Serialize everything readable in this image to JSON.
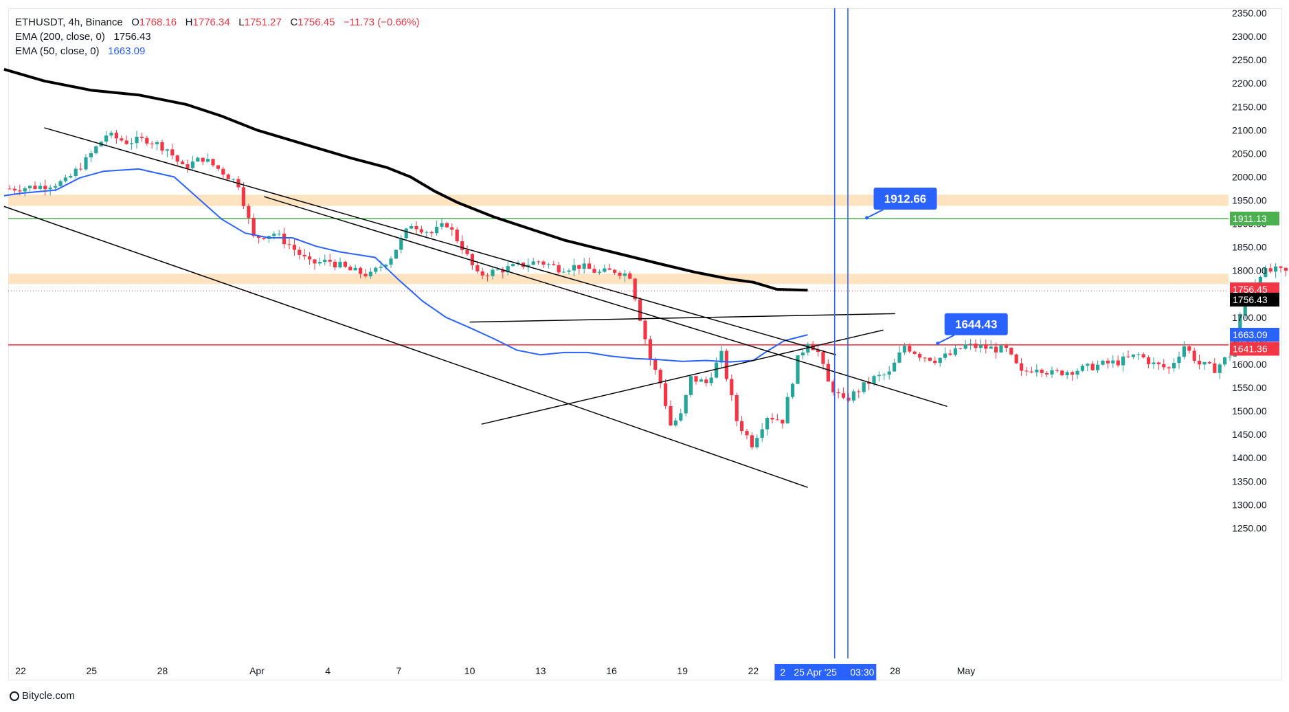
{
  "legend": {
    "symbol": "ETHUSDT, 4h, Binance",
    "o_label": "O",
    "o": "1768.16",
    "h_label": "H",
    "h": "1776.34",
    "l_label": "L",
    "l": "1751.27",
    "c_label": "C",
    "c": "1756.45",
    "change": "−11.73 (−0.66%)",
    "ema200_label": "EMA (200, close, 0)",
    "ema200_value": "1756.43",
    "ema50_label": "EMA (50, close, 0)",
    "ema50_value": "1663.09"
  },
  "footer": {
    "brand": "Bitycle.com"
  },
  "colors": {
    "up": "#26a69a",
    "down": "#f23645",
    "ema50": "#2962ff",
    "ema200": "#000000",
    "zone": "#fde3c0",
    "green_line": "#4caf50",
    "red_line": "#f23645",
    "callout": "#2962ff",
    "grid_text": "#131722"
  },
  "chart_data": {
    "type": "candlestick",
    "symbol": "ETHUSDT",
    "timeframe": "4h",
    "exchange": "Binance",
    "ylim": [
      1200,
      2360
    ],
    "y_ticks": [
      1250,
      1300,
      1350,
      1400,
      1450,
      1500,
      1550,
      1600,
      1650,
      1700,
      1750,
      1800,
      1850,
      1900,
      1950,
      2000,
      2050,
      2100,
      2150,
      2200,
      2250,
      2300,
      2350
    ],
    "x_ticks": [
      {
        "label": "22",
        "day": 22
      },
      {
        "label": "25",
        "day": 25
      },
      {
        "label": "28",
        "day": 28
      },
      {
        "label": "Apr",
        "day": 32
      },
      {
        "label": "4",
        "day": 35
      },
      {
        "label": "7",
        "day": 38
      },
      {
        "label": "10",
        "day": 41
      },
      {
        "label": "13",
        "day": 44
      },
      {
        "label": "16",
        "day": 47
      },
      {
        "label": "19",
        "day": 50
      },
      {
        "label": "22",
        "day": 53
      },
      {
        "label": "28",
        "day": 59
      },
      {
        "label": "May",
        "day": 62
      }
    ],
    "x_day_start": 21.3,
    "candle_anchors": [
      [
        0,
        1975
      ],
      [
        6,
        1980
      ],
      [
        11,
        1990
      ],
      [
        15,
        2035
      ],
      [
        19,
        2090
      ],
      [
        23,
        2075
      ],
      [
        27,
        2080
      ],
      [
        31,
        2060
      ],
      [
        34,
        2020
      ],
      [
        38,
        2040
      ],
      [
        42,
        2010
      ],
      [
        45,
        1985
      ],
      [
        48,
        1870
      ],
      [
        52,
        1880
      ],
      [
        55,
        1855
      ],
      [
        59,
        1815
      ],
      [
        63,
        1820
      ],
      [
        67,
        1800
      ],
      [
        71,
        1790
      ],
      [
        75,
        1830
      ],
      [
        79,
        1900
      ],
      [
        83,
        1880
      ],
      [
        86,
        1900
      ],
      [
        89,
        1850
      ],
      [
        92,
        1790
      ],
      [
        96,
        1800
      ],
      [
        100,
        1810
      ],
      [
        104,
        1820
      ],
      [
        108,
        1805
      ],
      [
        112,
        1810
      ],
      [
        116,
        1795
      ],
      [
        119,
        1800
      ],
      [
        122,
        1790
      ],
      [
        124,
        1700
      ],
      [
        126,
        1610
      ],
      [
        128,
        1560
      ],
      [
        130,
        1470
      ],
      [
        132,
        1490
      ],
      [
        134,
        1570
      ],
      [
        137,
        1560
      ],
      [
        140,
        1620
      ],
      [
        143,
        1480
      ],
      [
        146,
        1430
      ],
      [
        149,
        1490
      ],
      [
        152,
        1480
      ],
      [
        155,
        1610
      ],
      [
        157,
        1650
      ],
      [
        159,
        1625
      ],
      [
        161,
        1560
      ],
      [
        164,
        1520
      ],
      [
        167,
        1545
      ],
      [
        170,
        1570
      ],
      [
        173,
        1580
      ],
      [
        176,
        1640
      ],
      [
        179,
        1620
      ],
      [
        182,
        1610
      ],
      [
        185,
        1620
      ],
      [
        188,
        1640
      ],
      [
        192,
        1635
      ],
      [
        196,
        1630
      ],
      [
        199,
        1580
      ],
      [
        202,
        1595
      ],
      [
        205,
        1580
      ],
      [
        208,
        1585
      ],
      [
        211,
        1590
      ],
      [
        215,
        1600
      ],
      [
        218,
        1605
      ],
      [
        222,
        1620
      ],
      [
        225,
        1600
      ],
      [
        228,
        1590
      ],
      [
        231,
        1640
      ],
      [
        234,
        1600
      ],
      [
        237,
        1590
      ],
      [
        240,
        1620
      ],
      [
        242,
        1700
      ],
      [
        244,
        1760
      ],
      [
        246,
        1795
      ],
      [
        249,
        1800
      ],
      [
        252,
        1795
      ],
      [
        254,
        1787
      ],
      [
        256,
        1756
      ]
    ],
    "ema200_points": [
      [
        21.3,
        2230
      ],
      [
        23,
        2205
      ],
      [
        25,
        2185
      ],
      [
        27,
        2175
      ],
      [
        29,
        2155
      ],
      [
        30.5,
        2130
      ],
      [
        32,
        2100
      ],
      [
        34,
        2070
      ],
      [
        36,
        2040
      ],
      [
        37.5,
        2020
      ],
      [
        38.5,
        2000
      ],
      [
        39.5,
        1970
      ],
      [
        40.5,
        1945
      ],
      [
        42,
        1915
      ],
      [
        43.5,
        1890
      ],
      [
        45,
        1865
      ],
      [
        47,
        1840
      ],
      [
        49,
        1815
      ],
      [
        50.5,
        1797
      ],
      [
        52,
        1782
      ],
      [
        53,
        1775
      ],
      [
        54,
        1760
      ],
      [
        55.3,
        1758
      ]
    ],
    "ema50_points": [
      [
        21.3,
        1960
      ],
      [
        22,
        1965
      ],
      [
        23.5,
        1972
      ],
      [
        24.5,
        1998
      ],
      [
        25.5,
        2012
      ],
      [
        27,
        2017
      ],
      [
        28.5,
        2000
      ],
      [
        29.5,
        1955
      ],
      [
        30.5,
        1910
      ],
      [
        31.5,
        1880
      ],
      [
        32.5,
        1870
      ],
      [
        33.5,
        1870
      ],
      [
        34.5,
        1852
      ],
      [
        35.5,
        1840
      ],
      [
        37,
        1828
      ],
      [
        38,
        1780
      ],
      [
        39,
        1735
      ],
      [
        40,
        1700
      ],
      [
        41,
        1678
      ],
      [
        42,
        1655
      ],
      [
        43,
        1630
      ],
      [
        44,
        1620
      ],
      [
        45,
        1625
      ],
      [
        46,
        1625
      ],
      [
        47,
        1617
      ],
      [
        48,
        1612
      ],
      [
        49,
        1610
      ],
      [
        50,
        1606
      ],
      [
        51,
        1608
      ],
      [
        52,
        1605
      ],
      [
        53,
        1608
      ],
      [
        53.5,
        1625
      ],
      [
        54.3,
        1650
      ],
      [
        55.3,
        1663
      ]
    ],
    "horizontal_levels": [
      {
        "price": 1911.13,
        "label": "1911.13",
        "color": "#4caf50"
      },
      {
        "price": 1641.36,
        "label": "1641.36",
        "color": "#f23645"
      }
    ],
    "zones": [
      {
        "from": 1938,
        "to": 1962
      },
      {
        "from": 1771,
        "to": 1793
      }
    ],
    "trendlines": [
      {
        "p1": [
          23,
          2105
        ],
        "p2": [
          56.5,
          1620
        ]
      },
      {
        "p1": [
          21.3,
          1937
        ],
        "p2": [
          55.3,
          1337
        ]
      },
      {
        "p1": [
          41,
          1690
        ],
        "p2": [
          59,
          1708
        ]
      },
      {
        "p1": [
          41.5,
          1472
        ],
        "p2": [
          58.5,
          1673
        ]
      },
      {
        "p1": [
          32.3,
          1958
        ],
        "p2": [
          61.2,
          1510
        ]
      }
    ],
    "vertical_lines": [
      {
        "day": 56.44
      },
      {
        "day": 57.0
      }
    ],
    "callouts": [
      {
        "text": "1912.66",
        "price": 1912.66,
        "day": 57.8
      },
      {
        "text": "1644.43",
        "price": 1644.43,
        "day": 60.8
      }
    ],
    "price_tags": [
      {
        "text": "1911.13",
        "price": 1911.13,
        "bg": "#4caf50",
        "fg": "#ffffff"
      },
      {
        "text": "1756.45",
        "price": 1760,
        "bg": "#f23645",
        "fg": "#ffffff"
      },
      {
        "text": "1756.43",
        "price": 1738,
        "bg": "#000000",
        "fg": "#ffffff"
      },
      {
        "text": "1663.09",
        "price": 1663.09,
        "bg": "#2962ff",
        "fg": "#ffffff"
      },
      {
        "text": "1641.36",
        "price": 1633,
        "bg": "#f23645",
        "fg": "#ffffff"
      }
    ],
    "current_price": 1756.45,
    "x_cursor_label": "25 Apr '25",
    "x_cursor_time": "03:30",
    "x_cursor_prefix": "2"
  }
}
